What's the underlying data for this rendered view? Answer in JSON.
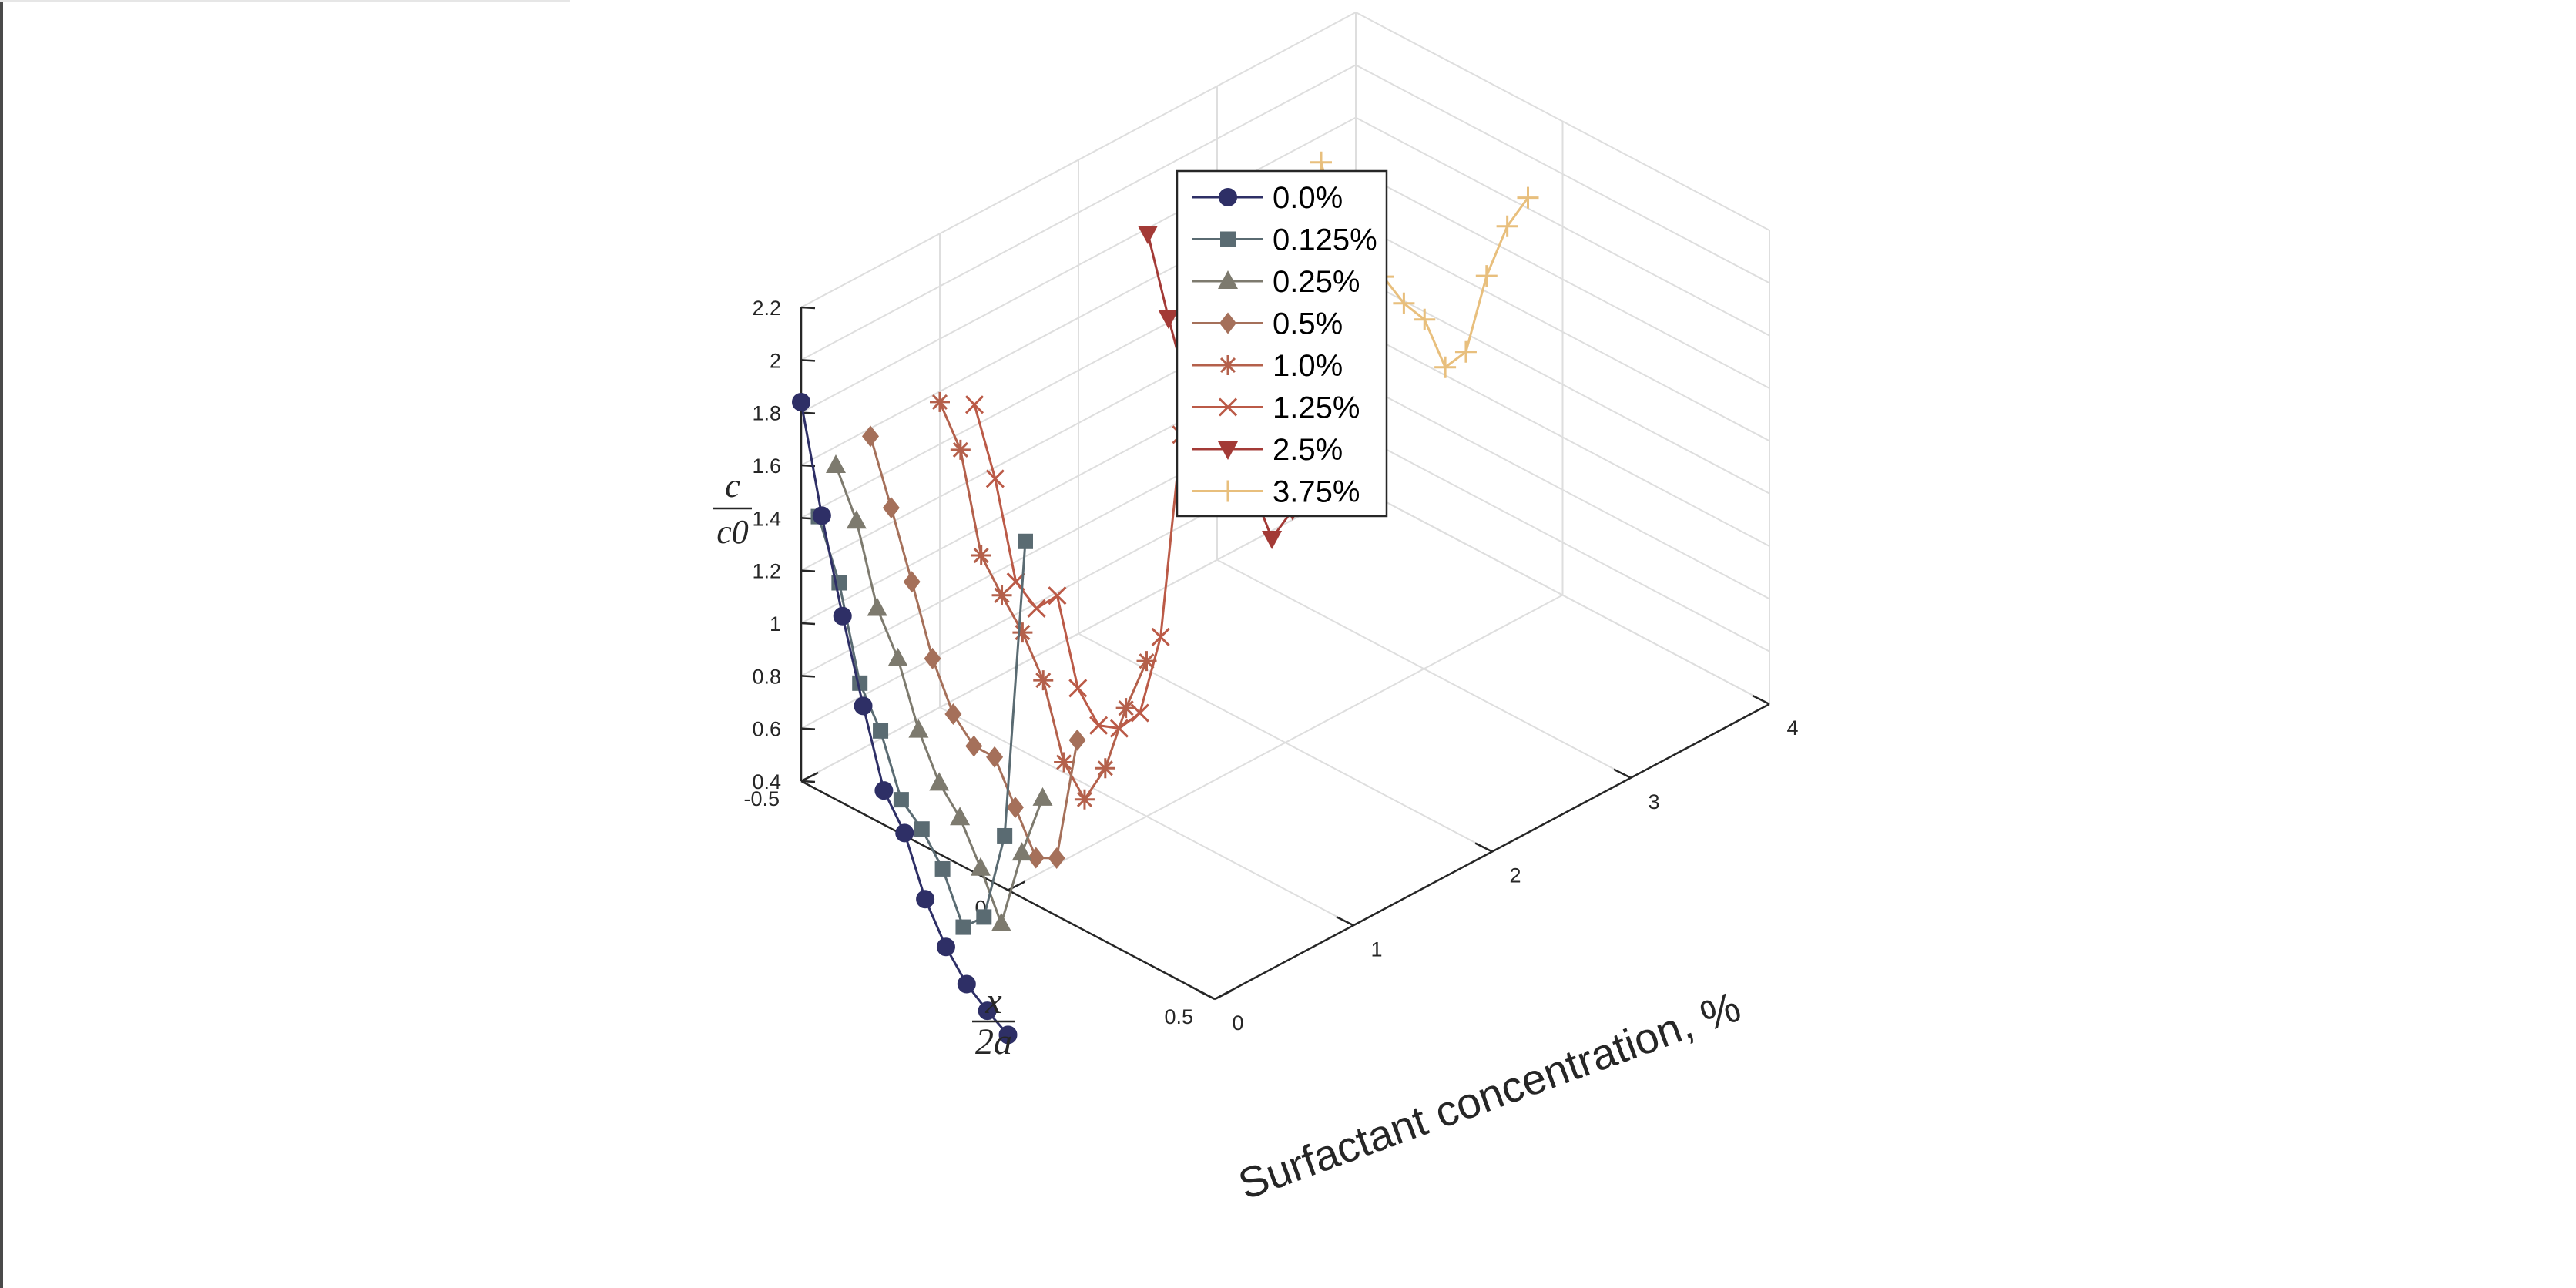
{
  "chart_data": {
    "type": "line",
    "subtype": "3d-line",
    "axes": {
      "x": {
        "label_numerator": "x",
        "label_denominator": "2a",
        "ticks": [
          "-0.5",
          "0",
          "0.5"
        ],
        "range": [
          -0.5,
          0.5
        ]
      },
      "y": {
        "label": "Surfactant concentration, %",
        "ticks": [
          "0",
          "1",
          "2",
          "3",
          "4"
        ],
        "range": [
          0,
          4
        ]
      },
      "z": {
        "label_numerator": "c",
        "label_denominator": "c0",
        "ticks": [
          "0.4",
          "0.6",
          "0.8",
          "1",
          "1.2",
          "1.4",
          "1.6",
          "1.8",
          "2",
          "2.2"
        ],
        "range": [
          0.4,
          2.2
        ]
      }
    },
    "grid": true,
    "legend_position": "top-center",
    "series": [
      {
        "name": "0.0%",
        "concentration": 0.0,
        "color": "#2e2f66",
        "marker": "circle",
        "x": [
          -0.5,
          -0.45,
          -0.4,
          -0.35,
          -0.3,
          -0.25,
          -0.2,
          -0.15,
          -0.1,
          -0.05,
          0.0
        ],
        "z": [
          1.84,
          1.45,
          1.11,
          0.81,
          0.53,
          0.41,
          0.2,
          0.06,
          -0.04,
          -0.1,
          -0.15
        ]
      },
      {
        "name": "0.125%",
        "concentration": 0.125,
        "color": "#5a6b72",
        "marker": "square",
        "x": [
          -0.5,
          -0.45,
          -0.4,
          -0.35,
          -0.3,
          -0.25,
          -0.2,
          -0.15,
          -0.1,
          -0.05,
          0.0
        ],
        "z": [
          1.37,
          1.16,
          0.82,
          0.68,
          0.46,
          0.39,
          0.28,
          0.1,
          0.18,
          0.53,
          1.69
        ]
      },
      {
        "name": "0.25%",
        "concentration": 0.25,
        "color": "#7d7a6e",
        "marker": "triangle-up",
        "x": [
          -0.5,
          -0.45,
          -0.4,
          -0.35,
          -0.3,
          -0.25,
          -0.2,
          -0.15,
          -0.1,
          -0.05,
          0.0
        ],
        "z": [
          1.53,
          1.36,
          1.07,
          0.92,
          0.69,
          0.53,
          0.44,
          0.29,
          0.12,
          0.43,
          0.68
        ]
      },
      {
        "name": "0.5%",
        "concentration": 0.5,
        "color": "#a5705a",
        "marker": "diamond",
        "x": [
          -0.5,
          -0.45,
          -0.4,
          -0.35,
          -0.3,
          -0.25,
          -0.2,
          -0.15,
          -0.1,
          -0.05,
          0.0
        ],
        "z": [
          1.57,
          1.34,
          1.1,
          0.85,
          0.68,
          0.6,
          0.6,
          0.45,
          0.3,
          0.34,
          0.83
        ]
      },
      {
        "name": "1.0%",
        "concentration": 1.0,
        "color": "#b4604b",
        "marker": "asterisk",
        "x": [
          -0.5,
          -0.45,
          -0.4,
          -0.35,
          -0.3,
          -0.25,
          -0.2,
          -0.15,
          -0.1,
          -0.05,
          0.0
        ],
        "z": [
          1.56,
          1.42,
          1.06,
          0.95,
          0.85,
          0.71,
          0.44,
          0.34,
          0.5,
          0.77,
          0.99
        ]
      },
      {
        "name": "1.25%",
        "concentration": 1.25,
        "color": "#bb5a47",
        "marker": "x",
        "x": [
          -0.5,
          -0.45,
          -0.4,
          -0.35,
          -0.3,
          -0.25,
          -0.2,
          -0.15,
          -0.1,
          -0.05,
          0.0
        ],
        "z": [
          1.48,
          1.24,
          0.89,
          0.83,
          0.92,
          0.61,
          0.51,
          0.54,
          0.64,
          0.97,
          1.78
        ]
      },
      {
        "name": "2.5%",
        "concentration": 2.5,
        "color": "#a33a36",
        "marker": "triangle-down",
        "x": [
          -0.5,
          -0.45,
          -0.4,
          -0.35,
          -0.3,
          -0.25,
          -0.2,
          -0.15,
          -0.1,
          -0.05,
          0.0
        ],
        "z": [
          1.78,
          1.5,
          1.25,
          1.17,
          1.07,
          1.03,
          0.87,
          1.02,
          1.27,
          1.68,
          2.07
        ]
      },
      {
        "name": "3.75%",
        "concentration": 3.75,
        "color": "#e8bf7d",
        "marker": "plus",
        "x": [
          -0.5,
          -0.45,
          -0.4,
          -0.35,
          -0.3,
          -0.25,
          -0.2,
          -0.15,
          -0.1,
          -0.05,
          0.0
        ],
        "z": [
          1.7,
          1.43,
          1.46,
          1.39,
          1.33,
          1.31,
          1.17,
          1.27,
          1.6,
          1.83,
          1.98
        ]
      }
    ]
  }
}
